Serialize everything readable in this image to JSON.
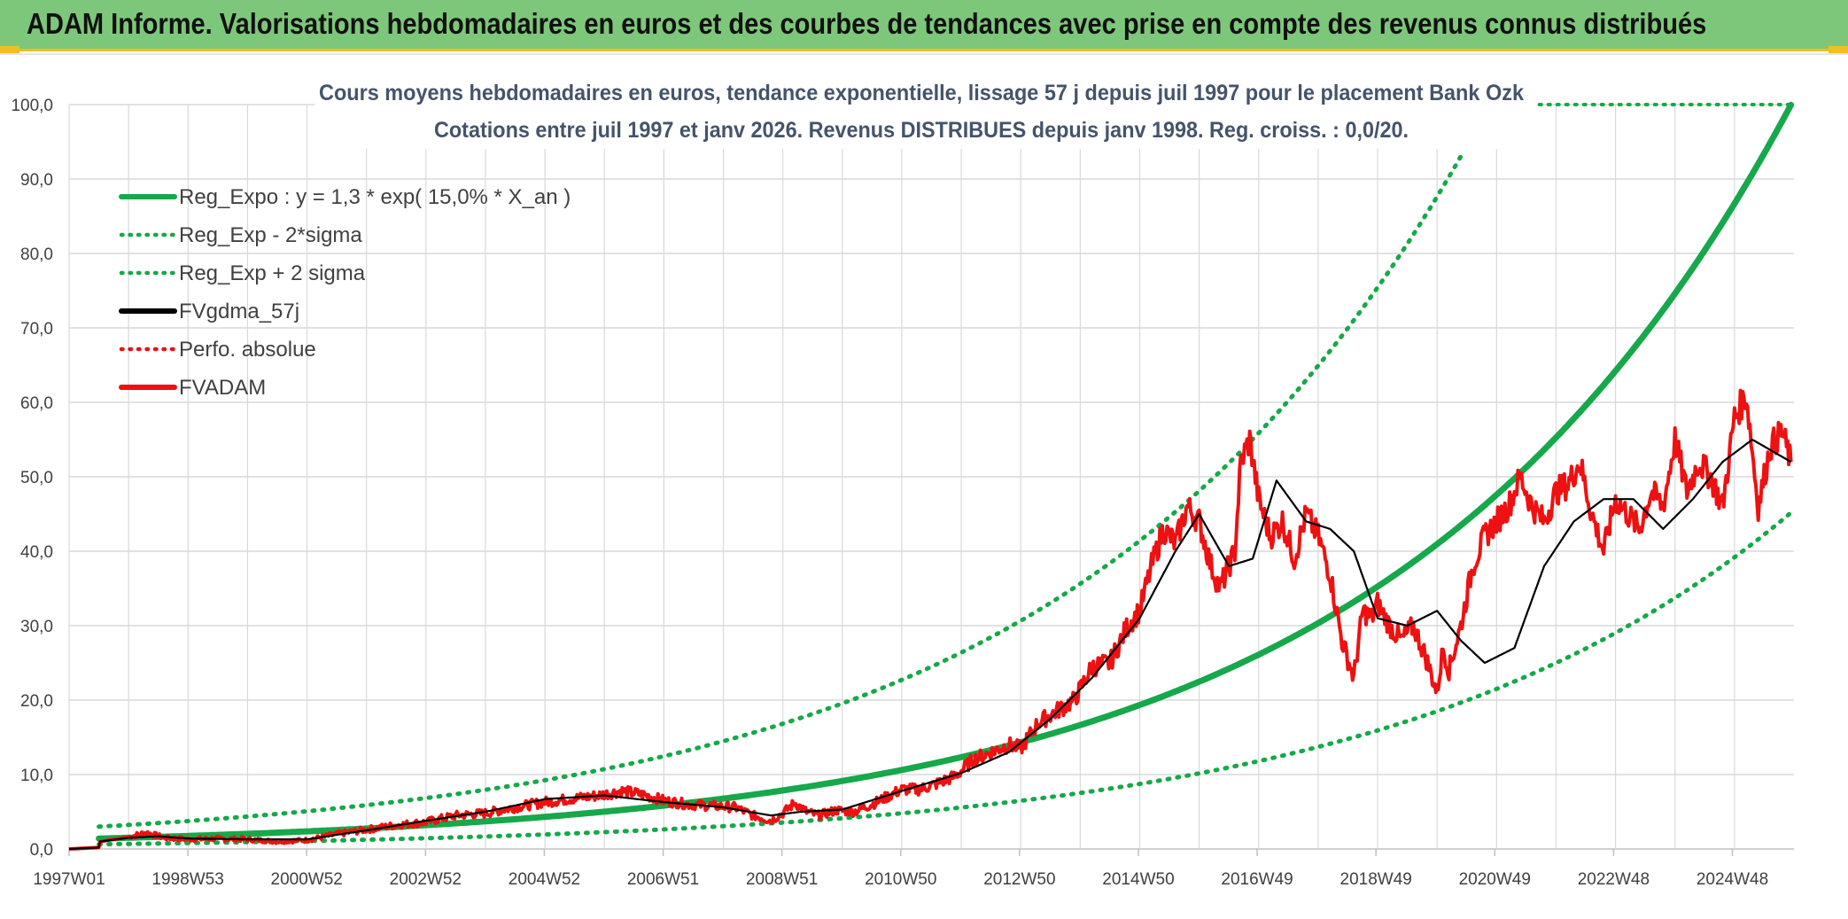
{
  "banner": {
    "title": "ADAM Informe. Valorisations hebdomadaires en euros et des courbes de tendances avec prise en compte des revenus connus distribués"
  },
  "colors": {
    "banner": "#7dc77a",
    "accent": "#f0c020",
    "trend": "#16a84a",
    "fvgdma": "#000000",
    "fvadam": "#ee1111",
    "grid": "#d9d9d9"
  },
  "chart_data": {
    "type": "line",
    "title_line1": "Cours moyens hebdomadaires en euros, tendance exponentielle, lissage 57 j depuis juil 1997 pour le placement Bank Ozk",
    "title_line2": "Cotations entre juil 1997 et janv 2026. Revenus DISTRIBUES depuis janv 1998. Reg. croiss. : 0,0/20.",
    "xlabel": "",
    "ylabel": "",
    "ylim": [
      0,
      100
    ],
    "xlim": [
      1997.0,
      2026.0
    ],
    "y_ticks": [
      "0,0",
      "10,0",
      "20,0",
      "30,0",
      "40,0",
      "50,0",
      "60,0",
      "70,0",
      "80,0",
      "90,0",
      "100,0"
    ],
    "x_tick_labels": [
      "1997W01",
      "1998W53",
      "2000W52",
      "2002W52",
      "2004W52",
      "2006W51",
      "2008W51",
      "2010W50",
      "2012W50",
      "2014W50",
      "2016W49",
      "2018W49",
      "2020W49",
      "2022W48",
      "2024W48"
    ],
    "legend": [
      {
        "label": "Reg_Expo : y = 1,3 * exp( 15,0% *  X_an )",
        "style": "solid",
        "color": "#16a84a"
      },
      {
        "label": "Reg_Exp - 2*sigma",
        "style": "dotted",
        "color": "#16a84a"
      },
      {
        "label": "Reg_Exp + 2 sigma",
        "style": "dotted",
        "color": "#16a84a"
      },
      {
        "label": "FVgdma_57j",
        "style": "solid",
        "color": "#000000"
      },
      {
        "label": "Perfo. absolue",
        "style": "dotted",
        "color": "#ee1111"
      },
      {
        "label": "FVADAM",
        "style": "solid",
        "color": "#ee1111"
      }
    ],
    "trend": {
      "a": 1.3,
      "rate": 0.15,
      "t0": 1997.5,
      "t_end": 2025.95,
      "lower_factor": 0.452,
      "upper_factor": 2.14,
      "upper_cap": 100
    },
    "series": [
      {
        "name": "FVADAM",
        "x": [
          1997.0,
          1997.5,
          1997.52,
          1998.0,
          1998.3,
          1998.6,
          1999.0,
          1999.5,
          2000.0,
          2000.5,
          2001.0,
          2001.5,
          2002.0,
          2002.5,
          2003.0,
          2003.5,
          2004.0,
          2004.5,
          2005.0,
          2005.5,
          2005.9,
          2006.3,
          2006.7,
          2007.0,
          2007.4,
          2007.8,
          2008.2,
          2008.5,
          2008.8,
          2009.0,
          2009.2,
          2009.4,
          2009.6,
          2009.9,
          2010.2,
          2010.5,
          2010.8,
          2011.0,
          2011.3,
          2011.6,
          2011.9,
          2012.2,
          2012.5,
          2012.8,
          2013.0,
          2013.3,
          2013.6,
          2013.9,
          2014.2,
          2014.5,
          2014.8,
          2015.0,
          2015.2,
          2015.4,
          2015.6,
          2015.8,
          2016.0,
          2016.2,
          2016.35,
          2016.5,
          2016.6,
          2016.7,
          2016.85,
          2017.0,
          2017.2,
          2017.4,
          2017.6,
          2017.8,
          2018.0,
          2018.2,
          2018.4,
          2018.6,
          2018.75,
          2018.9,
          2019.0,
          2019.2,
          2019.4,
          2019.6,
          2019.8,
          2020.0,
          2020.1,
          2020.2,
          2020.4,
          2020.6,
          2020.8,
          2021.0,
          2021.2,
          2021.4,
          2021.6,
          2021.8,
          2022.0,
          2022.2,
          2022.4,
          2022.6,
          2022.8,
          2023.0,
          2023.2,
          2023.4,
          2023.6,
          2023.8,
          2024.0,
          2024.2,
          2024.4,
          2024.6,
          2024.8,
          2025.0,
          2025.2,
          2025.4,
          2025.6,
          2025.8,
          2025.95
        ],
        "values": [
          0,
          0.2,
          1.0,
          1.6,
          2.2,
          1.5,
          1.3,
          1.4,
          1.3,
          1.0,
          1.2,
          2.0,
          2.6,
          3.2,
          3.6,
          4.5,
          4.8,
          5.6,
          6.3,
          6.8,
          7.2,
          7.8,
          7.2,
          6.5,
          6.0,
          5.8,
          5.6,
          4.5,
          3.8,
          4.8,
          6.2,
          5.0,
          4.5,
          5.2,
          5.0,
          6.0,
          7.2,
          8.0,
          8.0,
          8.8,
          9.8,
          12.0,
          13.0,
          14.0,
          13.5,
          17.0,
          18.5,
          20.0,
          24.5,
          25.0,
          30.0,
          32.0,
          38.0,
          43.0,
          41.0,
          46.0,
          44.0,
          38.0,
          35.0,
          38.0,
          40.0,
          52.0,
          55.0,
          47.0,
          42.0,
          44.0,
          39.0,
          45.0,
          42.0,
          37.0,
          28.0,
          23.0,
          32.0,
          31.0,
          33.0,
          30.0,
          28.0,
          30.0,
          26.0,
          21.0,
          27.0,
          24.0,
          30.0,
          38.0,
          42.0,
          44.0,
          46.0,
          50.0,
          46.0,
          44.0,
          48.0,
          49.0,
          52.0,
          45.0,
          40.0,
          47.0,
          45.0,
          43.0,
          48.0,
          46.0,
          55.0,
          48.0,
          52.0,
          50.0,
          46.0,
          58.0,
          61.0,
          46.0,
          54.0,
          56.0,
          52.0
        ]
      },
      {
        "name": "FVgdma_57j",
        "x": [
          1997.0,
          1997.5,
          1997.52,
          1998.0,
          1998.5,
          1999.0,
          2000.0,
          2001.0,
          2002.0,
          2003.0,
          2004.0,
          2005.0,
          2006.0,
          2007.0,
          2008.0,
          2008.8,
          2009.3,
          2010.0,
          2011.0,
          2012.0,
          2012.8,
          2013.5,
          2014.2,
          2015.0,
          2015.6,
          2016.0,
          2016.5,
          2016.9,
          2017.3,
          2017.8,
          2018.2,
          2018.6,
          2019.0,
          2019.5,
          2020.0,
          2020.4,
          2020.8,
          2021.3,
          2021.8,
          2022.3,
          2022.8,
          2023.3,
          2023.8,
          2024.3,
          2024.8,
          2025.3,
          2025.95
        ],
        "values": [
          0,
          0.2,
          1.0,
          1.5,
          1.7,
          1.4,
          1.3,
          1.3,
          2.5,
          3.8,
          5.0,
          6.7,
          7.2,
          6.3,
          5.6,
          4.5,
          5.0,
          5.3,
          7.8,
          10.2,
          13.0,
          17.5,
          23.0,
          31.0,
          40.0,
          45.0,
          38.0,
          39.0,
          49.5,
          44.0,
          43.0,
          40.0,
          31.0,
          30.0,
          32.0,
          28.0,
          25.0,
          27.0,
          38.0,
          44.0,
          47.0,
          47.0,
          43.0,
          47.0,
          52.0,
          55.0,
          52.0
        ]
      }
    ]
  }
}
